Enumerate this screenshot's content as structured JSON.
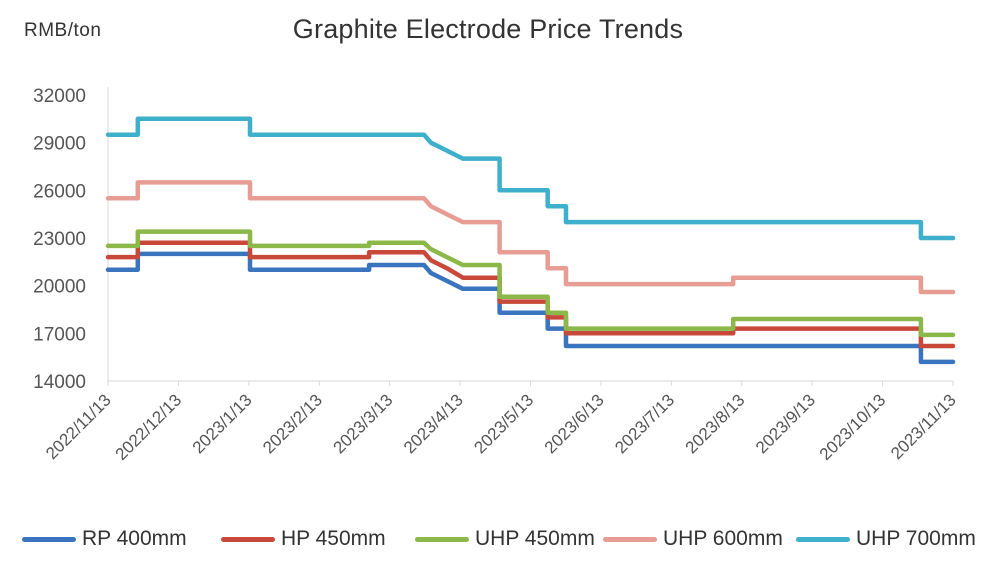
{
  "chart_title": "Graphite Electrode Price Trends",
  "unit_label": "RMB/ton",
  "chart_data": {
    "type": "line",
    "title": "Graphite Electrode Price Trends",
    "ylabel": "RMB/ton",
    "ylim": [
      14000,
      32000
    ],
    "yticks": [
      14000,
      17000,
      20000,
      23000,
      26000,
      29000,
      32000
    ],
    "xlim": [
      "2022-11-13",
      "2023-11-17"
    ],
    "xtick_labels": [
      "2022/11/13",
      "2022/12/13",
      "2023/1/13",
      "2023/2/13",
      "2023/3/13",
      "2023/4/13",
      "2023/5/13",
      "2023/6/13",
      "2023/7/13",
      "2023/8/13",
      "2023/9/13",
      "2023/10/13",
      "2023/11/13"
    ],
    "grid": false,
    "legend_position": "bottom",
    "series": [
      {
        "name": "RP 400mm",
        "color": "#3A73BE",
        "x": [
          "2022-11-13",
          "2022-11-26",
          "2022-11-26",
          "2023-01-14",
          "2023-01-14",
          "2023-03-07",
          "2023-03-07",
          "2023-03-31",
          "2023-03-31",
          "2023-04-03",
          "2023-04-03",
          "2023-04-10",
          "2023-04-10",
          "2023-04-17",
          "2023-04-17",
          "2023-05-03",
          "2023-05-03",
          "2023-05-24",
          "2023-05-24",
          "2023-06-01",
          "2023-06-01",
          "2023-11-03",
          "2023-11-03",
          "2023-11-17"
        ],
        "y": [
          21000,
          21000,
          22000,
          22000,
          21000,
          21000,
          21300,
          21300,
          21300,
          20800,
          20800,
          20300,
          20300,
          19800,
          19800,
          19800,
          18300,
          18300,
          17300,
          17300,
          16200,
          16200,
          15200,
          15200
        ]
      },
      {
        "name": "HP 450mm",
        "color": "#C8483A",
        "x": [
          "2022-11-13",
          "2022-11-26",
          "2022-11-26",
          "2023-01-14",
          "2023-01-14",
          "2023-03-07",
          "2023-03-07",
          "2023-03-31",
          "2023-03-31",
          "2023-04-03",
          "2023-04-03",
          "2023-04-10",
          "2023-04-10",
          "2023-04-17",
          "2023-04-17",
          "2023-05-03",
          "2023-05-03",
          "2023-05-24",
          "2023-05-24",
          "2023-06-01",
          "2023-06-01",
          "2023-08-13",
          "2023-08-13",
          "2023-11-03",
          "2023-11-03",
          "2023-11-17"
        ],
        "y": [
          21800,
          21800,
          22700,
          22700,
          21800,
          21800,
          22100,
          22100,
          22100,
          21600,
          21600,
          21100,
          21100,
          20500,
          20500,
          20500,
          19000,
          19000,
          18000,
          18000,
          17000,
          17000,
          17300,
          17300,
          16200,
          16200
        ]
      },
      {
        "name": "UHP 450mm",
        "color": "#8BB848",
        "x": [
          "2022-11-13",
          "2022-11-26",
          "2022-11-26",
          "2023-01-14",
          "2023-01-14",
          "2023-03-07",
          "2023-03-07",
          "2023-03-31",
          "2023-03-31",
          "2023-04-03",
          "2023-04-03",
          "2023-04-10",
          "2023-04-10",
          "2023-04-17",
          "2023-04-17",
          "2023-05-03",
          "2023-05-03",
          "2023-05-24",
          "2023-05-24",
          "2023-06-01",
          "2023-06-01",
          "2023-08-13",
          "2023-08-13",
          "2023-11-03",
          "2023-11-03",
          "2023-11-17"
        ],
        "y": [
          22500,
          22500,
          23400,
          23400,
          22500,
          22500,
          22700,
          22700,
          22700,
          22300,
          22300,
          21800,
          21800,
          21300,
          21300,
          21300,
          19300,
          19300,
          18300,
          18300,
          17300,
          17300,
          17900,
          17900,
          16900,
          16900
        ]
      },
      {
        "name": "UHP 600mm",
        "color": "#E79C94",
        "x": [
          "2022-11-13",
          "2022-11-26",
          "2022-11-26",
          "2023-01-14",
          "2023-01-14",
          "2023-03-31",
          "2023-03-31",
          "2023-04-03",
          "2023-04-03",
          "2023-04-10",
          "2023-04-10",
          "2023-04-17",
          "2023-04-17",
          "2023-05-03",
          "2023-05-03",
          "2023-05-24",
          "2023-05-24",
          "2023-06-01",
          "2023-06-01",
          "2023-08-13",
          "2023-08-13",
          "2023-11-03",
          "2023-11-03",
          "2023-11-17"
        ],
        "y": [
          25500,
          25500,
          26500,
          26500,
          25500,
          25500,
          25500,
          25000,
          25000,
          24500,
          24500,
          24000,
          24000,
          24000,
          22100,
          22100,
          21100,
          21100,
          20100,
          20100,
          20500,
          20500,
          19600,
          19600
        ]
      },
      {
        "name": "UHP 700mm",
        "color": "#3FB0CB",
        "x": [
          "2022-11-13",
          "2022-11-26",
          "2022-11-26",
          "2023-01-14",
          "2023-01-14",
          "2023-03-31",
          "2023-03-31",
          "2023-04-03",
          "2023-04-03",
          "2023-04-10",
          "2023-04-10",
          "2023-04-17",
          "2023-04-17",
          "2023-05-03",
          "2023-05-03",
          "2023-05-24",
          "2023-05-24",
          "2023-06-01",
          "2023-06-01",
          "2023-11-03",
          "2023-11-03",
          "2023-11-17"
        ],
        "y": [
          29500,
          29500,
          30500,
          30500,
          29500,
          29500,
          29500,
          29000,
          29000,
          28500,
          28500,
          28000,
          28000,
          28000,
          26000,
          26000,
          25000,
          25000,
          24000,
          24000,
          23000,
          23000
        ]
      }
    ]
  }
}
